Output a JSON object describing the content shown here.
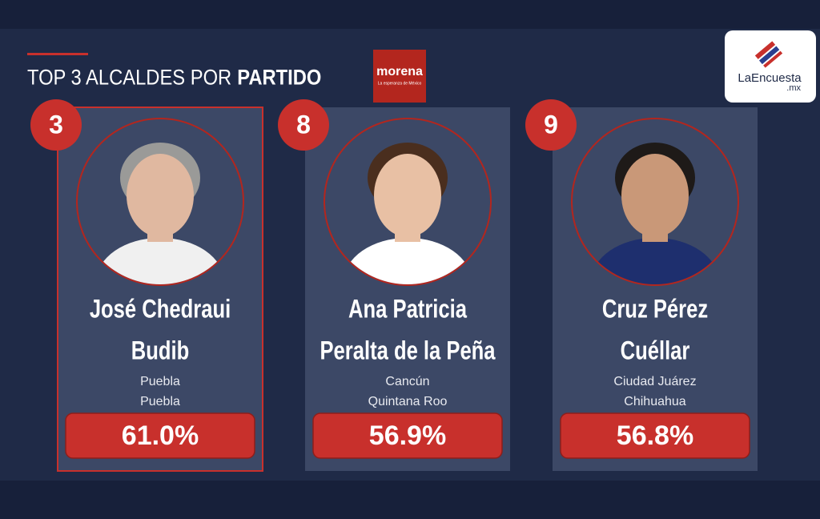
{
  "header": {
    "title_regular": "TOP 3 ALCALDES POR",
    "title_bold": "PARTIDO",
    "party_logo": "morena",
    "party_tagline": "La esperanza de México",
    "brand": "LaEncuesta",
    "brand_suffix": ".mx"
  },
  "cards": [
    {
      "rank": "3",
      "name_lines": [
        "José Chedraui",
        "Budib"
      ],
      "location_lines": [
        "Puebla",
        "Puebla"
      ],
      "percent": "61.0%"
    },
    {
      "rank": "8",
      "name_lines": [
        "Ana Patricia",
        "Peralta de la Peña"
      ],
      "location_lines": [
        "Cancún",
        "Quintana Roo"
      ],
      "percent": "56.9%"
    },
    {
      "rank": "9",
      "name_lines": [
        "Cruz Pérez",
        "Cuéllar"
      ],
      "location_lines": [
        "Ciudad Juárez",
        "Chihuahua"
      ],
      "percent": "56.8%"
    }
  ]
}
